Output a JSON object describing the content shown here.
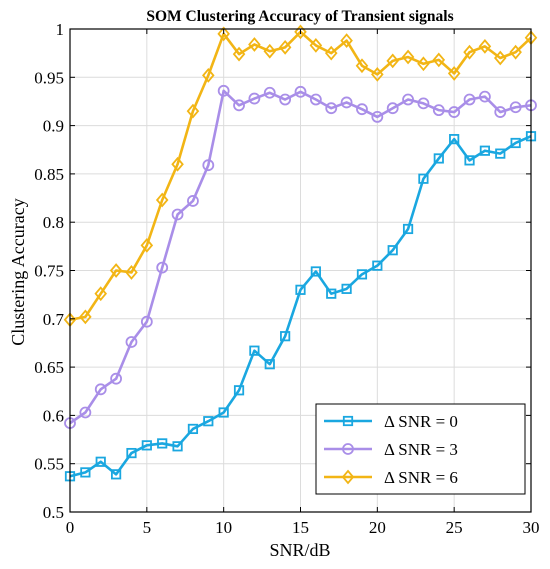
{
  "chart_data": {
    "type": "line",
    "title": "SOM Clustering Accuracy of Transient signals",
    "xlabel": "SNR/dB",
    "ylabel": "Clustering Accuracy",
    "xlim": [
      0,
      30
    ],
    "ylim": [
      0.5,
      1.0
    ],
    "grid": true,
    "legend_position": "bottom-right",
    "x_ticks": [
      0,
      5,
      10,
      15,
      20,
      25,
      30
    ],
    "y_ticks": [
      0.5,
      0.55,
      0.6,
      0.65,
      0.7,
      0.75,
      0.8,
      0.85,
      0.9,
      0.95,
      1
    ],
    "x_tick_labels": [
      "0",
      "5",
      "10",
      "15",
      "20",
      "25",
      "30"
    ],
    "y_tick_labels": [
      "0.5",
      "0.55",
      "0.6",
      "0.65",
      "0.7",
      "0.75",
      "0.8",
      "0.85",
      "0.9",
      "0.95",
      "1"
    ],
    "x": [
      0,
      1,
      2,
      3,
      4,
      5,
      6,
      7,
      8,
      9,
      10,
      11,
      12,
      13,
      14,
      15,
      16,
      17,
      18,
      19,
      20,
      21,
      22,
      23,
      24,
      25,
      26,
      27,
      28,
      29,
      30
    ],
    "series": [
      {
        "name": "Δ SNR = 0",
        "color": "#1aa7e0",
        "marker": "square",
        "values": [
          0.537,
          0.541,
          0.552,
          0.539,
          0.561,
          0.569,
          0.571,
          0.568,
          0.586,
          0.594,
          0.603,
          0.626,
          0.667,
          0.653,
          0.682,
          0.73,
          0.749,
          0.726,
          0.731,
          0.746,
          0.755,
          0.771,
          0.793,
          0.845,
          0.866,
          0.886,
          0.864,
          0.874,
          0.871,
          0.882,
          0.889
        ]
      },
      {
        "name": "Δ SNR = 3",
        "color": "#a98ee8",
        "marker": "circle",
        "values": [
          0.592,
          0.603,
          0.627,
          0.638,
          0.676,
          0.697,
          0.753,
          0.808,
          0.822,
          0.859,
          0.936,
          0.921,
          0.928,
          0.934,
          0.927,
          0.935,
          0.927,
          0.918,
          0.924,
          0.917,
          0.909,
          0.918,
          0.927,
          0.923,
          0.916,
          0.914,
          0.927,
          0.93,
          0.914,
          0.919,
          0.921
        ]
      },
      {
        "name": "Δ SNR = 6",
        "color": "#f2b515",
        "marker": "diamond",
        "values": [
          0.699,
          0.702,
          0.726,
          0.75,
          0.748,
          0.776,
          0.823,
          0.86,
          0.915,
          0.952,
          0.995,
          0.974,
          0.984,
          0.977,
          0.981,
          0.997,
          0.983,
          0.975,
          0.988,
          0.962,
          0.953,
          0.967,
          0.971,
          0.964,
          0.968,
          0.954,
          0.976,
          0.982,
          0.97,
          0.976,
          0.991
        ]
      }
    ]
  }
}
